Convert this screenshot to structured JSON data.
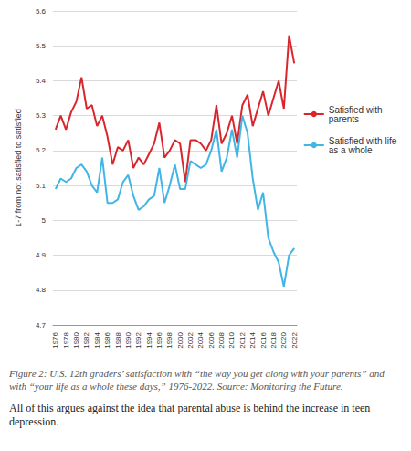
{
  "chart_data": {
    "type": "line",
    "y_label": "1-7 from not satisfied to satisfied",
    "annotations": [
      "Figure 2: U.S. 12th graders’ satisfaction with “the way you get along with your parents” and with “your life as a whole these days,” 1976-2022. Source: Monitoring the Future.",
      "All of this argues against the idea that parental abuse is behind the increase in teen depression."
    ],
    "categories": [
      "1976",
      null,
      "1978",
      null,
      "1980",
      null,
      "1982",
      null,
      "1984",
      null,
      "1986",
      null,
      "1988",
      null,
      "1990",
      null,
      "1992",
      null,
      "1994",
      null,
      "1996",
      null,
      "1998",
      null,
      "2000",
      null,
      "2002",
      null,
      "2004",
      null,
      "2006",
      null,
      "2008",
      null,
      "2010",
      null,
      "2012",
      null,
      "2014",
      null,
      "2016",
      null,
      "2018",
      null,
      "2020",
      null,
      "2022"
    ],
    "series": [
      {
        "name": "Satisfied with parents",
        "color": "#d9262c",
        "values": [
          5.26,
          5.3,
          5.26,
          5.31,
          5.34,
          5.41,
          5.32,
          5.33,
          5.27,
          5.3,
          5.24,
          5.16,
          5.21,
          5.2,
          5.23,
          5.15,
          5.18,
          5.16,
          5.19,
          5.22,
          5.28,
          5.18,
          5.2,
          5.23,
          5.22,
          5.11,
          5.23,
          5.23,
          5.22,
          5.2,
          5.23,
          5.33,
          5.22,
          5.25,
          5.3,
          5.22,
          5.33,
          5.36,
          5.27,
          5.32,
          5.37,
          5.3,
          5.35,
          5.4,
          5.32,
          5.53,
          5.45
        ]
      },
      {
        "name": "Satisfied with life as a whole",
        "color": "#41b6e6",
        "values": [
          5.09,
          5.12,
          5.11,
          5.12,
          5.15,
          5.16,
          5.14,
          5.1,
          5.08,
          5.18,
          5.05,
          5.05,
          5.06,
          5.11,
          5.13,
          5.07,
          5.03,
          5.04,
          5.06,
          5.07,
          5.15,
          5.05,
          5.1,
          5.16,
          5.09,
          5.09,
          5.17,
          5.16,
          5.15,
          5.16,
          5.2,
          5.26,
          5.14,
          5.18,
          5.26,
          5.18,
          5.3,
          5.25,
          5.12,
          5.03,
          5.08,
          4.95,
          4.91,
          4.88,
          4.81,
          4.9,
          4.92
        ]
      }
    ],
    "ylim": [
      4.7,
      5.6
    ],
    "yticks": [
      4.7,
      4.8,
      4.9,
      5,
      5.1,
      5.2,
      5.3,
      5.4,
      5.5,
      5.6
    ],
    "grid": true,
    "legend": "right"
  }
}
